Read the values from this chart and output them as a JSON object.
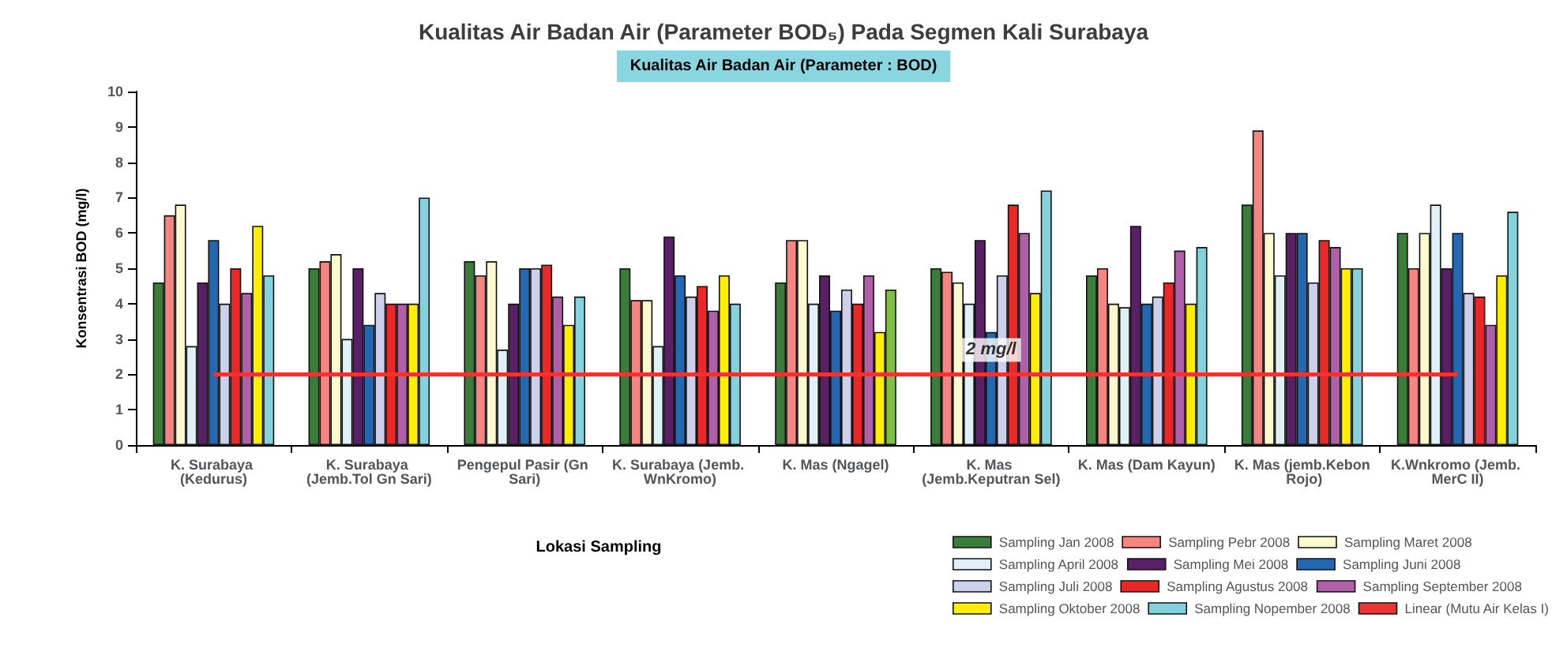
{
  "chart_data": {
    "type": "bar",
    "title": "Kualitas Air Badan Air (Parameter BOD₅) Pada Segmen Kali Surabaya",
    "subtitle": "Kualitas Air Badan Air (Parameter : BOD)",
    "xlabel": "Lokasi Sampling",
    "ylabel": "Konsentrasi BOD (mg/l)",
    "categories": [
      "K. Surabaya (Kedurus)",
      "K. Surabaya (Jemb.Tol Gn Sari)",
      "Pengepul Pasir (Gn Sari)",
      "K. Surabaya (Jemb. WnKromo)",
      "K. Mas (Ngagel)",
      "K. Mas (Jemb.Keputran Sel)",
      "K. Mas (Dam Kayun)",
      "K. Mas (jemb.Kebon Rojo)",
      "K.Wnkromo (Jemb. MerC II)"
    ],
    "series": [
      {
        "name": "Sampling Jan 2008",
        "color": "#3a7d3a",
        "values": [
          4.6,
          5.0,
          5.2,
          5.0,
          4.6,
          5.0,
          4.8,
          6.8,
          6.0
        ]
      },
      {
        "name": "Sampling Pebr 2008",
        "color": "#f48580",
        "values": [
          6.5,
          5.2,
          4.8,
          4.1,
          5.8,
          4.9,
          5.0,
          8.9,
          5.0
        ]
      },
      {
        "name": "Sampling Maret 2008",
        "color": "#fdf9cf",
        "values": [
          6.8,
          5.4,
          5.2,
          4.1,
          5.8,
          4.6,
          4.0,
          6.0,
          6.0
        ]
      },
      {
        "name": "Sampling April 2008",
        "color": "#dff1f6",
        "values": [
          2.8,
          3.0,
          2.7,
          2.8,
          4.0,
          4.0,
          3.9,
          4.8,
          6.8
        ]
      },
      {
        "name": "Sampling Mei 2008",
        "color": "#5a2066",
        "values": [
          4.6,
          5.0,
          4.0,
          5.9,
          4.8,
          5.8,
          6.2,
          6.0,
          5.0
        ]
      },
      {
        "name": "Sampling Juni 2008",
        "color": "#2468b2",
        "values": [
          5.8,
          3.4,
          5.0,
          4.8,
          3.8,
          3.2,
          4.0,
          6.0,
          6.0
        ]
      },
      {
        "name": "Sampling Juli 2008",
        "color": "#cdd0ea",
        "values": [
          4.0,
          4.3,
          5.0,
          4.2,
          4.4,
          4.8,
          4.2,
          4.6,
          4.3
        ]
      },
      {
        "name": "Sampling Agustus 2008",
        "color": "#ea2828",
        "values": [
          5.0,
          4.0,
          5.1,
          4.5,
          4.0,
          6.8,
          4.6,
          5.8,
          4.2
        ]
      },
      {
        "name": "Sampling September 2008",
        "color": "#b060a8",
        "values": [
          4.3,
          4.0,
          4.2,
          3.8,
          4.8,
          6.0,
          5.5,
          5.6,
          3.4
        ]
      },
      {
        "name": "Sampling Oktober 2008",
        "color": "#ffee00",
        "values": [
          6.2,
          4.0,
          3.4,
          4.8,
          3.2,
          4.3,
          4.0,
          5.0,
          4.8
        ]
      },
      {
        "name": "Sampling Nopember 2008",
        "color": "#84d2de",
        "colors": [
          "#84d2de",
          "#84d2de",
          "#84d2de",
          "#84d2de",
          "#80c040",
          "#84d2de",
          "#84d2de",
          "#84d2de",
          "#84d2de"
        ],
        "values": [
          4.8,
          7.0,
          4.2,
          4.0,
          4.4,
          7.2,
          5.6,
          5.0,
          6.6
        ]
      },
      {
        "name": "Linear (Mutu Air Kelas I)",
        "type": "line",
        "color": "#ee3333",
        "marker": "none",
        "values": [
          2,
          2,
          2,
          2,
          2,
          2,
          2,
          2,
          2
        ]
      }
    ],
    "annotations": [
      {
        "text": "2 mg/l",
        "x": "K. Mas (Jemb.Keputran Sel)",
        "y": 2
      }
    ],
    "ylim": [
      0,
      10
    ],
    "yticks": [
      0,
      1,
      2,
      3,
      4,
      5,
      6,
      7,
      8,
      9,
      10
    ],
    "grid": false,
    "legend": "bottom right"
  }
}
